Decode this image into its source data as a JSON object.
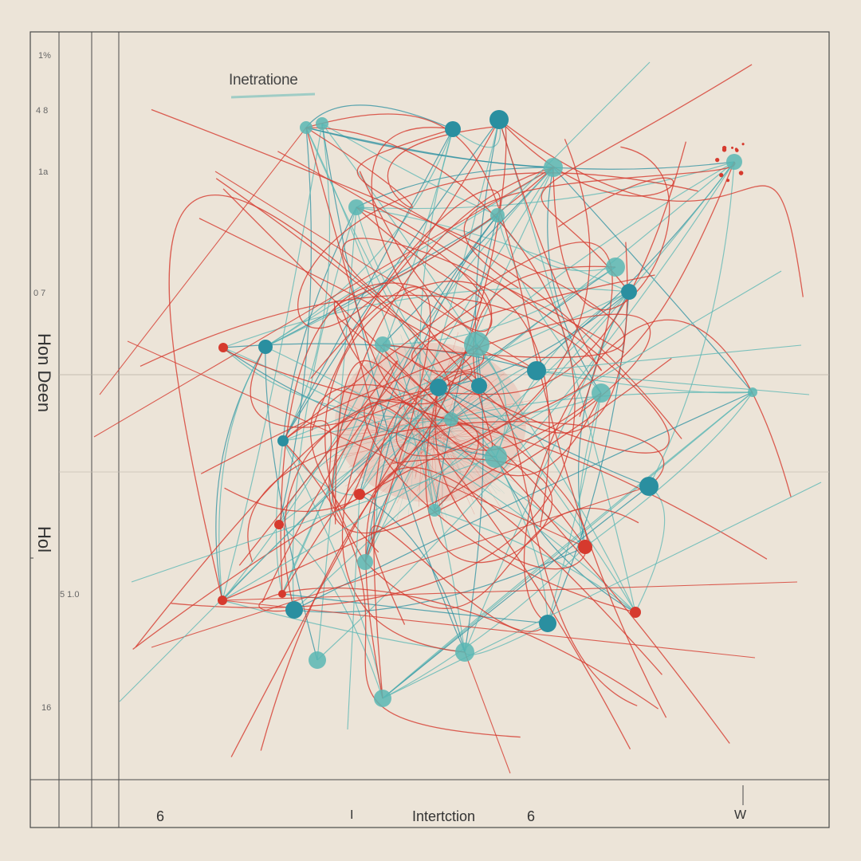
{
  "diagram": {
    "title": "Inetratione",
    "x_axis_label": "Intertction",
    "x_ticks": [
      "6",
      "I",
      "6",
      "W"
    ],
    "y_ticks": [
      "1%",
      "4 8",
      "1a",
      "0 7",
      "5 1.0",
      "16"
    ],
    "y_axis_label_upper": "Hon Deen",
    "y_axis_label_lower": "Hol"
  },
  "colors": {
    "background": "#ece4d8",
    "frame": "#4a4a4a",
    "teal": "#5bb7b4",
    "teal_dark": "#2a8fa0",
    "red": "#d63a2e"
  }
}
